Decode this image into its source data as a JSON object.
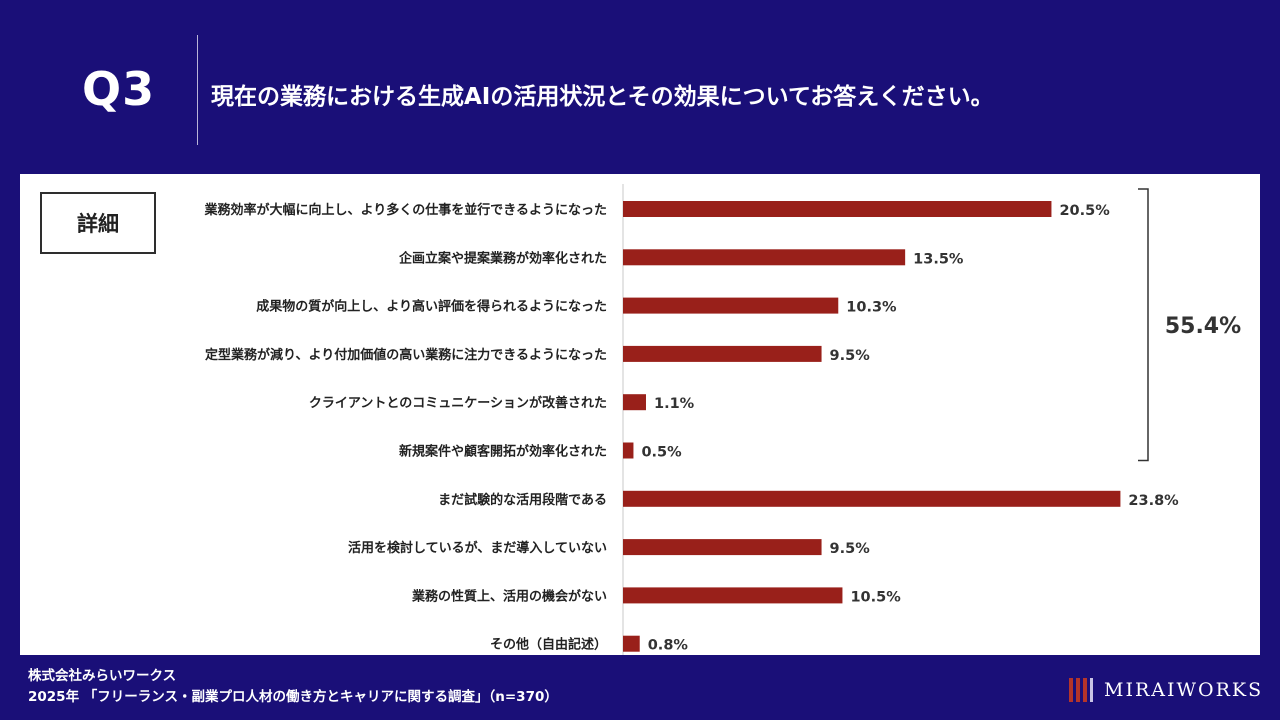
{
  "header": {
    "question_number": "Q3",
    "question_text": "現在の業務における生成AIの活用状況とその効果についてお答えください。"
  },
  "panel": {
    "detail_label": "詳細"
  },
  "chart_data": {
    "type": "bar",
    "orientation": "horizontal",
    "categories": [
      "業務効率が大幅に向上し、より多くの仕事を並行できるようになった",
      "企画立案や提案業務が効率化された",
      "成果物の質が向上し、より高い評価を得られるようになった",
      "定型業務が減り、より付加価値の高い業務に注力できるようになった",
      "クライアントとのコミュニケーションが改善された",
      "新規案件や顧客開拓が効率化された",
      "まだ試験的な活用段階である",
      "活用を検討しているが、まだ導入していない",
      "業務の性質上、活用の機会がない",
      "その他（自由記述）"
    ],
    "values": [
      20.5,
      13.5,
      10.3,
      9.5,
      1.1,
      0.5,
      23.8,
      9.5,
      10.5,
      0.8
    ],
    "value_labels": [
      "20.5%",
      "13.5%",
      "10.3%",
      "9.5%",
      "1.1%",
      "0.5%",
      "23.8%",
      "9.5%",
      "10.5%",
      "0.8%"
    ],
    "bar_color": "#99201a",
    "bracket": {
      "from_index": 0,
      "to_index": 5,
      "label": "55.4%"
    }
  },
  "footer": {
    "company": "株式会社みらいワークス",
    "survey": "2025年 「フリーランス・副業プロ人材の働き方とキャリアに関する調査」（n=370）"
  },
  "logo": {
    "text": "MIRAIWORKS",
    "colors": [
      "#b4342a",
      "#c9c4e6"
    ]
  }
}
